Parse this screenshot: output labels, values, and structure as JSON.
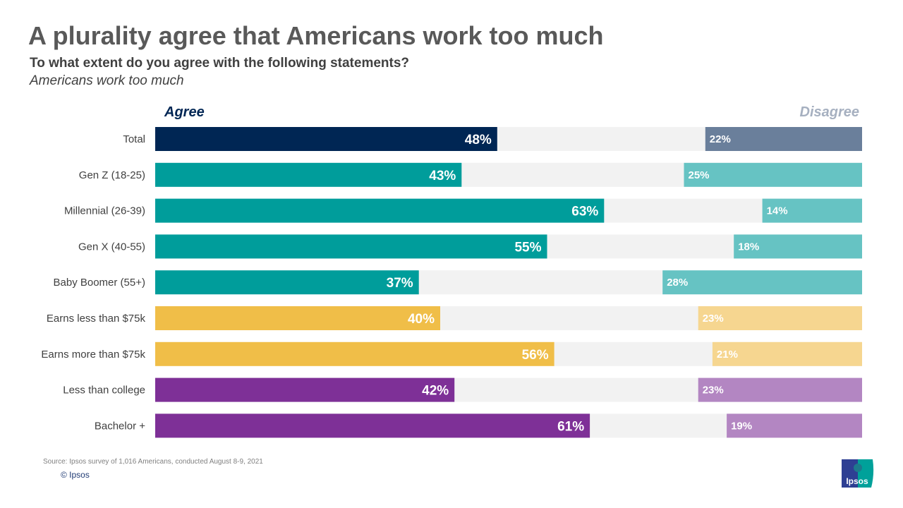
{
  "title": "A plurality agree that Americans work too much",
  "subtitle": "To what extent do you agree with the following statements?",
  "statement": "Americans work too much",
  "source": "Source: Ipsos survey of 1,016 Americans, conducted August 8-9, 2021",
  "copyright": "© Ipsos",
  "logo_text": "Ipsos",
  "chart_data": {
    "type": "bar",
    "orientation": "horizontal-diverging",
    "categories": [
      "Total",
      "Gen Z (18-25)",
      "Millennial (26-39)",
      "Gen X (40-55)",
      "Baby Boomer (55+)",
      "Earns less than $75k",
      "Earns more than $75k",
      "Less than college",
      "Bachelor +"
    ],
    "series": [
      {
        "name": "Agree",
        "values": [
          48,
          43,
          63,
          55,
          37,
          40,
          56,
          42,
          61
        ]
      },
      {
        "name": "Disagree",
        "values": [
          22,
          25,
          14,
          18,
          28,
          23,
          21,
          23,
          19
        ]
      }
    ],
    "agree_colors": [
      "#002654",
      "#009d9b",
      "#009d9b",
      "#009d9b",
      "#009d9b",
      "#f0be48",
      "#f0be48",
      "#7e3097",
      "#7e3097"
    ],
    "disagree_colors": [
      "#6a7f9b",
      "#66c3c3",
      "#66c3c3",
      "#66c3c3",
      "#66c3c3",
      "#f6d690",
      "#f6d690",
      "#b386c2",
      "#b386c2"
    ],
    "agree_header_color": "#002654",
    "disagree_header_color": "#a6b0c0",
    "background_color": "#f2f2f2",
    "value_suffix": "%"
  }
}
